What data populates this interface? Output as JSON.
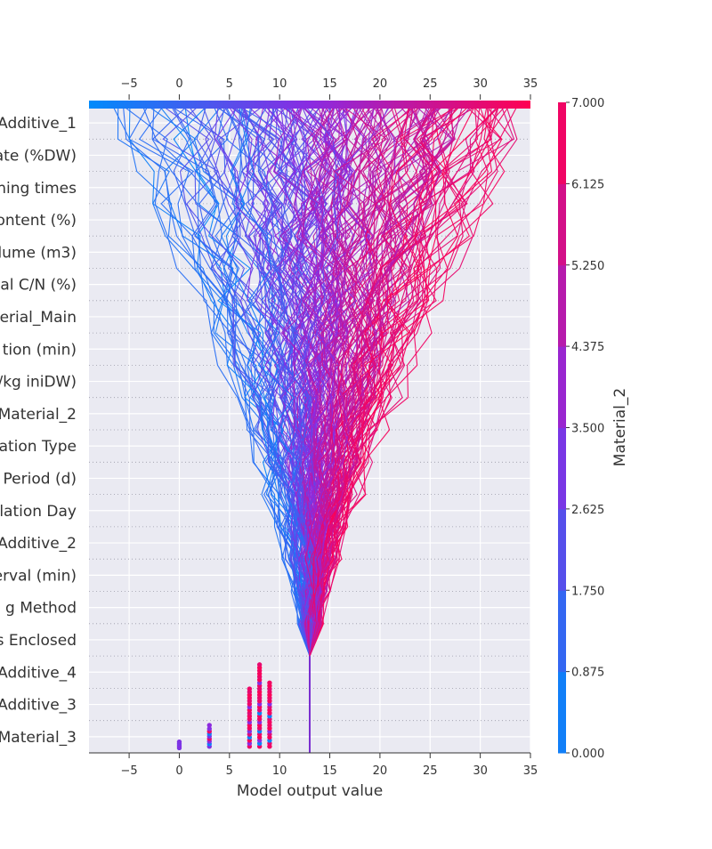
{
  "chart_data": {
    "type": "decision-plot",
    "xlabel": "Model output value",
    "xlim": [
      -9,
      35
    ],
    "x_ticks": [
      -5,
      0,
      5,
      10,
      15,
      20,
      25,
      30,
      35
    ],
    "base_value": 13,
    "features": [
      "Additive_1",
      "ate (%DW)",
      "ning times",
      "ontent (%)",
      "lume (m3)",
      "al C/N (%)",
      "erial_Main",
      "tion (min)",
      "/kg iniDW)",
      "Material_2",
      "ation Type",
      "Period (d)",
      "lation Day",
      "Additive_2",
      "erval (min)",
      "g Method",
      "s Enclosed",
      "Additive_4",
      "Additive_3",
      "Material_3"
    ],
    "colorbar": {
      "label": "Material_2",
      "ticks": [
        "0.000",
        "0.875",
        "1.750",
        "2.625",
        "3.500",
        "4.375",
        "5.250",
        "6.125",
        "7.000"
      ],
      "range": [
        0,
        7
      ]
    },
    "colors": {
      "low": "#008bfb",
      "mid": "#8a2be2",
      "high": "#ff0052",
      "plot_bg": "#eaeaf2",
      "grid": "#ffffff",
      "base_line": "#7a2fd0"
    },
    "scatter_columns": [
      {
        "x": 0,
        "ys": [
          0.05,
          0.25,
          0.45,
          0.65
        ],
        "colors": [
          3.1,
          3.4,
          3.0,
          3.2
        ]
      },
      {
        "x": 3,
        "ys": [
          0.2,
          0.45,
          0.7,
          0.95,
          1.2,
          1.45,
          1.7,
          1.95,
          2.3
        ],
        "colors": [
          3.3,
          0.3,
          3.5,
          6.2,
          3.2,
          0.5,
          6.5,
          3.4,
          3.6
        ]
      },
      {
        "x": 7,
        "ys": [
          0.2,
          0.5,
          0.8,
          1.1,
          1.4,
          1.7,
          2.0,
          2.3,
          2.6,
          2.9,
          3.2,
          3.5,
          3.8,
          4.1,
          4.4,
          4.7,
          5.0,
          5.3,
          5.6,
          5.9
        ],
        "colors": [
          6.5,
          3.5,
          6.8,
          0.4,
          6.2,
          3.3,
          6.6,
          6.9,
          3.6,
          6.4,
          6.7,
          6.1,
          6.8,
          3.5,
          6.5,
          6.3,
          6.6,
          6.9,
          6.2,
          6.5
        ]
      },
      {
        "x": 8,
        "ys": [
          0.2,
          0.5,
          0.8,
          1.1,
          1.4,
          1.7,
          2.0,
          2.3,
          2.6,
          2.9,
          3.2,
          3.5,
          3.8,
          4.1,
          4.4,
          4.7,
          5.0,
          5.3,
          5.6,
          5.9,
          6.2,
          6.5,
          6.8,
          7.1,
          7.4,
          7.7,
          8.0,
          8.3
        ],
        "colors": [
          6.5,
          0.2,
          3.4,
          6.8,
          6.6,
          0.5,
          6.2,
          6.9,
          3.6,
          6.4,
          6.7,
          0.3,
          6.1,
          6.8,
          3.5,
          6.5,
          6.3,
          6.6,
          6.9,
          6.2,
          6.5,
          3.3,
          6.7,
          6.4,
          6.8,
          6.6,
          6.9,
          6.3
        ]
      },
      {
        "x": 9,
        "ys": [
          0.2,
          0.5,
          0.8,
          1.1,
          1.4,
          1.7,
          2.0,
          2.3,
          2.6,
          2.9,
          3.2,
          3.5,
          3.8,
          4.1,
          4.4,
          4.7,
          5.0,
          5.3,
          5.6,
          5.9,
          6.2,
          6.5
        ],
        "colors": [
          6.6,
          6.4,
          0.4,
          6.8,
          6.2,
          3.5,
          6.9,
          6.5,
          6.7,
          6.3,
          0.6,
          6.6,
          6.8,
          6.1,
          3.4,
          6.7,
          6.4,
          6.9,
          6.5,
          6.2,
          6.8,
          6.6
        ]
      }
    ]
  }
}
